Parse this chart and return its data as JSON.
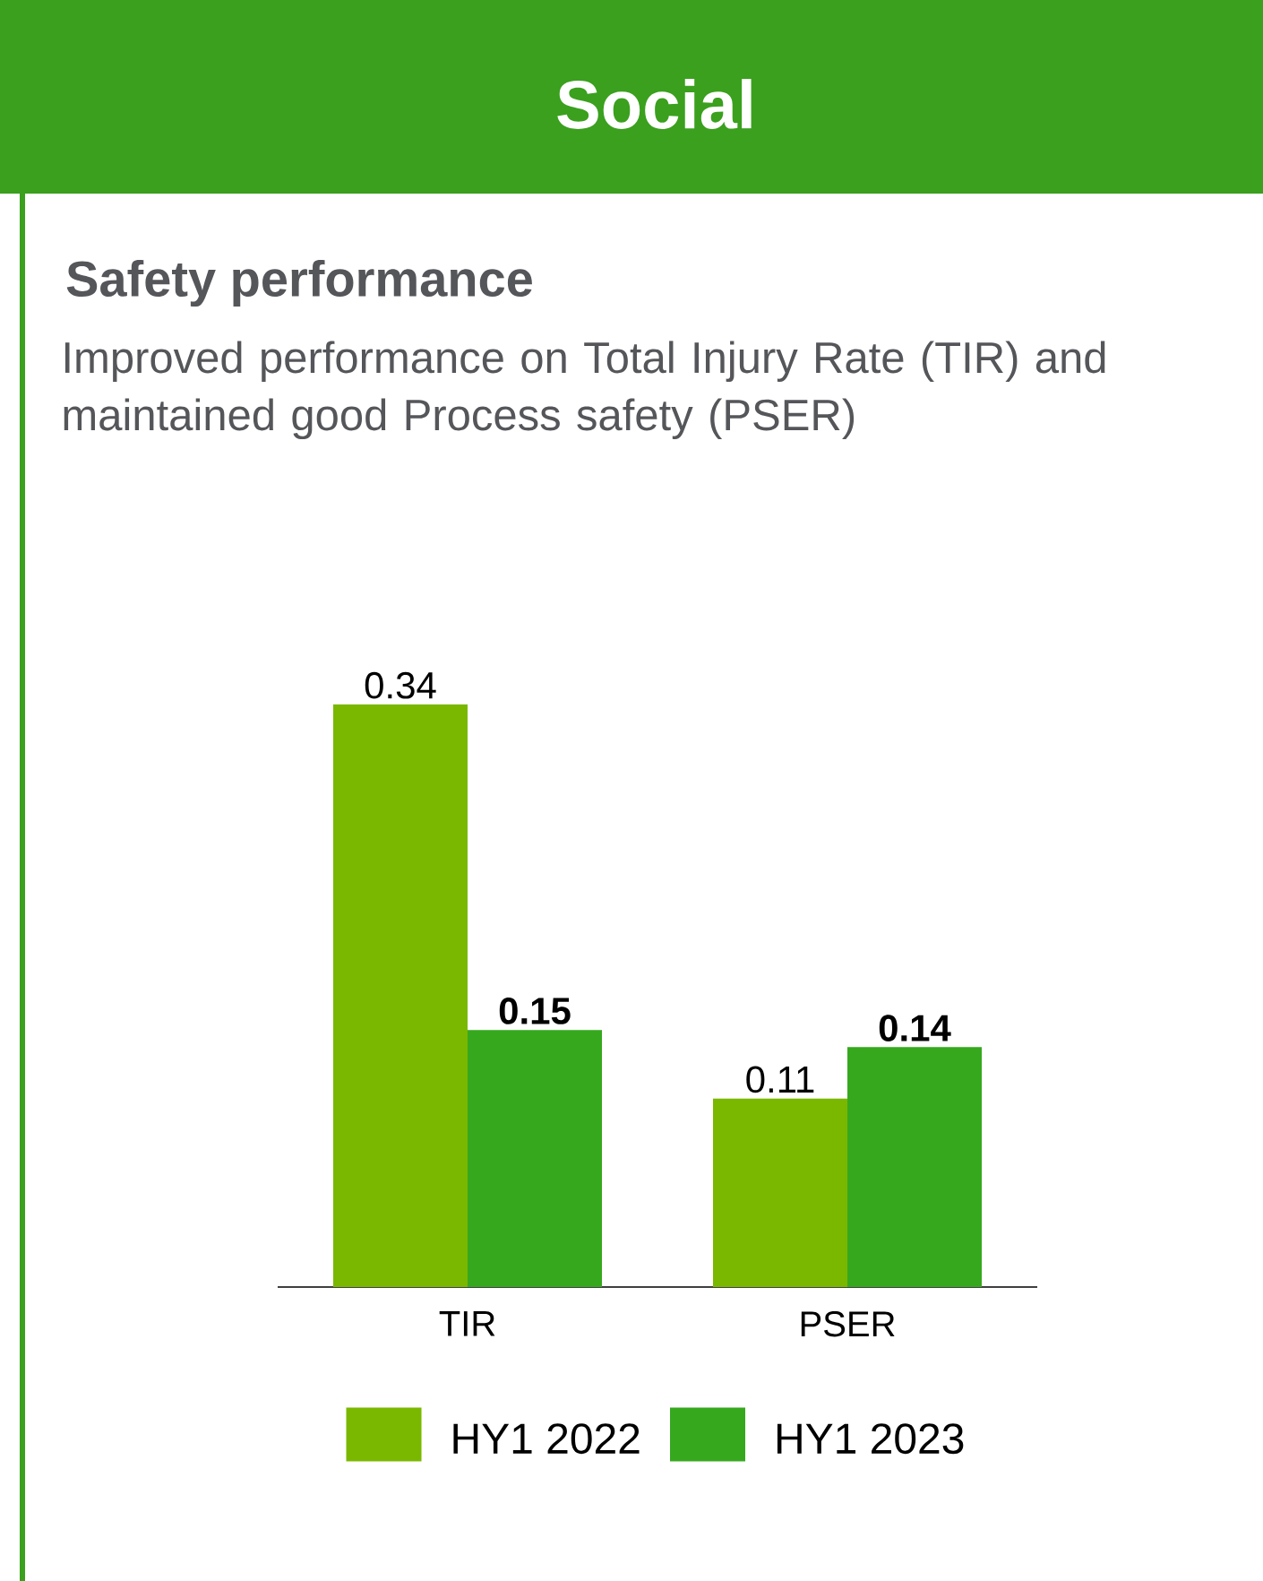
{
  "chart_data": {
    "type": "bar",
    "title": "Social",
    "subtitle": "Safety performance",
    "annotations": [
      "Improved performance on Total Injury Rate (TIR) and maintained good Process safety (PSER)"
    ],
    "categories": [
      "TIR",
      "PSER"
    ],
    "series": [
      {
        "name": "HY1 2022",
        "color": "#7ab800",
        "values": [
          0.34,
          0.11
        ]
      },
      {
        "name": "HY1 2023",
        "color": "#36a81e",
        "values": [
          0.15,
          0.14
        ]
      }
    ],
    "data_labels": true,
    "legend": "bottom"
  }
}
